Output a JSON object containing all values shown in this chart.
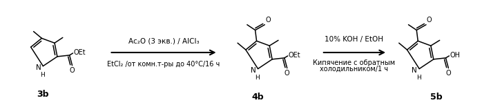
{
  "background_color": "#ffffff",
  "reaction1_reagent1": "Ac₂O (3 экв.) / AlCl₃",
  "reaction1_reagent2": "EtCl₂ /от комн.т-ры до 40°C/16 ч",
  "reaction2_reagent1": "10% KOH / EtOH",
  "reaction2_reagent2": "Кипячение с обратным",
  "reaction2_reagent3": "холодильником/1 ч",
  "label1": "3b",
  "label2": "4b",
  "label3": "5b",
  "text_color": "#000000",
  "lw": 1.0
}
